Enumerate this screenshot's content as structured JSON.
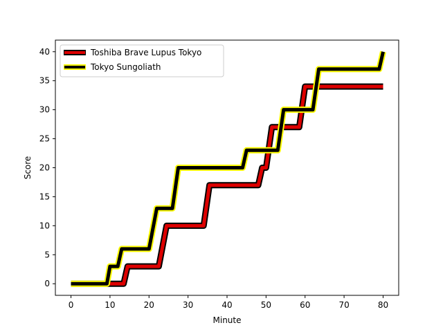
{
  "chart_data": {
    "type": "line",
    "title": "",
    "xlabel": "Minute",
    "ylabel": "Score",
    "xlim": [
      -4,
      84
    ],
    "ylim": [
      -2,
      42
    ],
    "xticks": [
      0,
      10,
      20,
      30,
      40,
      50,
      60,
      70,
      80
    ],
    "yticks": [
      0,
      5,
      10,
      15,
      20,
      25,
      30,
      35,
      40
    ],
    "grid": false,
    "legend_position": "top-left",
    "series": [
      {
        "name": "Toshiba Brave Lupus Tokyo",
        "line_color": "#dd0000",
        "edge_color": "#000000",
        "points": [
          [
            0,
            0
          ],
          [
            9.2,
            0
          ],
          [
            9.8,
            0
          ],
          [
            13.5,
            0
          ],
          [
            14.5,
            3
          ],
          [
            22.5,
            3
          ],
          [
            24.5,
            10
          ],
          [
            34,
            10
          ],
          [
            35.5,
            17
          ],
          [
            48,
            17
          ],
          [
            49,
            20
          ],
          [
            50,
            20
          ],
          [
            51.5,
            27
          ],
          [
            58.5,
            27
          ],
          [
            60,
            34
          ],
          [
            80,
            34
          ]
        ]
      },
      {
        "name": "Tokyo Sungoliath",
        "line_color": "#000000",
        "edge_color": "#ffff00",
        "points": [
          [
            0,
            0
          ],
          [
            9.2,
            0
          ],
          [
            10,
            3
          ],
          [
            12,
            3
          ],
          [
            13,
            6
          ],
          [
            20,
            6
          ],
          [
            22,
            13
          ],
          [
            26,
            13
          ],
          [
            27.5,
            20
          ],
          [
            44,
            20
          ],
          [
            45,
            23
          ],
          [
            53,
            23
          ],
          [
            54.5,
            30
          ],
          [
            62,
            30
          ],
          [
            63.5,
            37
          ],
          [
            79,
            37
          ],
          [
            80,
            40
          ]
        ]
      }
    ]
  }
}
